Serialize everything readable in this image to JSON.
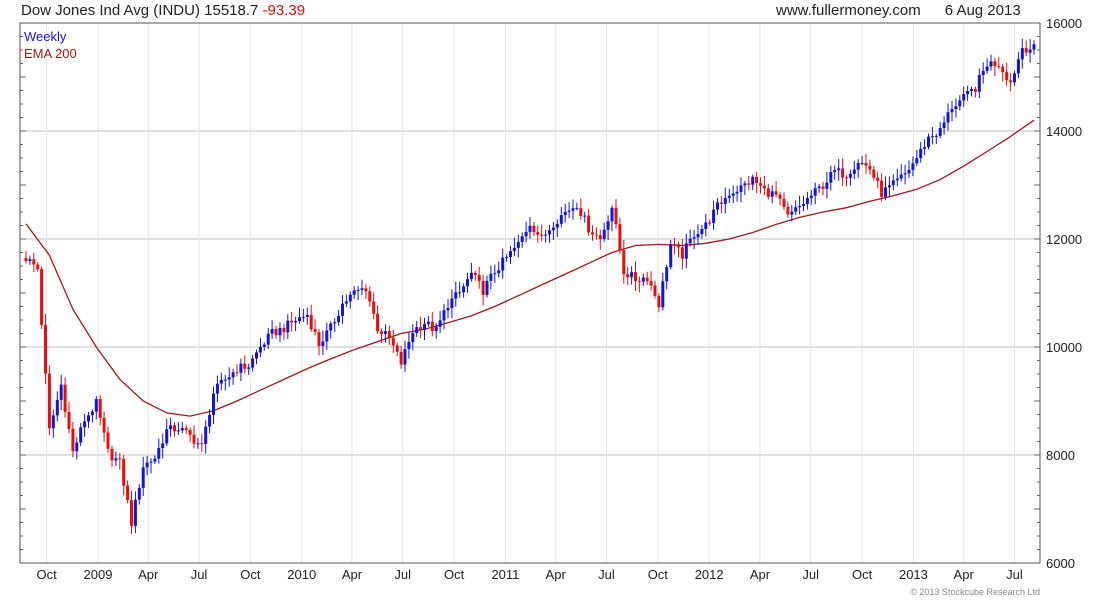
{
  "header": {
    "title": "Dow Jones Ind Avg (INDU)",
    "last": "15518.7",
    "change": "-93.39",
    "source": "www.fullermoney.com",
    "date": "6 Aug 2013"
  },
  "copyright": "© 2013 Stockcube Research Ltd",
  "colors": {
    "up": "#1515d0",
    "down": "#e01010",
    "ema": "#a01818",
    "grid": "#c8c8c8",
    "frame": "#555555"
  },
  "chart_data": {
    "type": "line",
    "title": "Dow Jones Ind Avg (INDU)",
    "frequency": "Weekly",
    "ylim": [
      6000,
      16000
    ],
    "y_ticks": [
      6000,
      8000,
      10000,
      12000,
      14000,
      16000
    ],
    "x_ticks": [
      "Oct",
      "2009",
      "Apr",
      "Jul",
      "Oct",
      "2010",
      "Apr",
      "Jul",
      "Oct",
      "2011",
      "Apr",
      "Jul",
      "Oct",
      "2012",
      "Apr",
      "Jul",
      "Oct",
      "2013",
      "Apr",
      "Jul"
    ],
    "x_tick_dates": [
      "2008-10-01",
      "2009-01-01",
      "2009-04-01",
      "2009-07-01",
      "2009-10-01",
      "2010-01-01",
      "2010-04-01",
      "2010-07-01",
      "2010-10-01",
      "2011-01-01",
      "2011-04-01",
      "2011-07-01",
      "2011-10-01",
      "2012-01-01",
      "2012-04-01",
      "2012-07-01",
      "2012-10-01",
      "2013-01-01",
      "2013-04-01",
      "2013-07-01"
    ],
    "x_range": [
      "2008-08-25",
      "2013-08-05"
    ],
    "legend": [
      "Weekly",
      "EMA 200"
    ],
    "legend_placement": "top-left",
    "grid": true,
    "series": [
      {
        "name": "Weekly",
        "x": [
          "2008-08-25",
          "2008-09-15",
          "2008-10-06",
          "2008-10-27",
          "2008-11-17",
          "2008-12-08",
          "2008-12-29",
          "2009-01-19",
          "2009-02-09",
          "2009-03-02",
          "2009-03-23",
          "2009-04-13",
          "2009-05-04",
          "2009-05-25",
          "2009-06-15",
          "2009-07-06",
          "2009-07-27",
          "2009-08-17",
          "2009-09-07",
          "2009-09-28",
          "2009-10-19",
          "2009-11-09",
          "2009-11-30",
          "2009-12-21",
          "2010-01-11",
          "2010-02-01",
          "2010-02-22",
          "2010-03-15",
          "2010-04-05",
          "2010-04-26",
          "2010-05-17",
          "2010-06-07",
          "2010-06-28",
          "2010-07-19",
          "2010-08-09",
          "2010-08-30",
          "2010-09-20",
          "2010-10-11",
          "2010-11-01",
          "2010-11-22",
          "2010-12-13",
          "2011-01-03",
          "2011-01-24",
          "2011-02-14",
          "2011-03-07",
          "2011-03-28",
          "2011-04-18",
          "2011-05-09",
          "2011-05-30",
          "2011-06-20",
          "2011-07-11",
          "2011-08-01",
          "2011-08-22",
          "2011-09-12",
          "2011-10-03",
          "2011-10-24",
          "2011-11-14",
          "2011-12-05",
          "2011-12-26",
          "2012-01-16",
          "2012-02-06",
          "2012-02-27",
          "2012-03-19",
          "2012-04-09",
          "2012-04-30",
          "2012-05-21",
          "2012-06-11",
          "2012-07-02",
          "2012-07-23",
          "2012-08-13",
          "2012-09-03",
          "2012-09-24",
          "2012-10-15",
          "2012-11-05",
          "2012-11-26",
          "2012-12-17",
          "2013-01-07",
          "2013-01-28",
          "2013-02-18",
          "2013-03-11",
          "2013-04-01",
          "2013-04-22",
          "2013-05-13",
          "2013-06-03",
          "2013-06-24",
          "2013-07-15",
          "2013-08-05"
        ],
        "close": [
          11650,
          11450,
          8450,
          9300,
          8050,
          8650,
          8950,
          8050,
          7850,
          6750,
          7800,
          7950,
          8450,
          8500,
          8350,
          8150,
          9150,
          9400,
          9600,
          9650,
          10000,
          10250,
          10350,
          10500,
          10600,
          10050,
          10350,
          10800,
          11000,
          11100,
          10350,
          10150,
          9700,
          10300,
          10450,
          10300,
          10800,
          11000,
          11350,
          11050,
          11400,
          11650,
          11900,
          12300,
          12000,
          12300,
          12500,
          12650,
          12200,
          12000,
          12600,
          11400,
          11250,
          11300,
          10800,
          11900,
          11700,
          12100,
          12250,
          12600,
          12850,
          12950,
          13100,
          12900,
          12800,
          12400,
          12600,
          12800,
          13000,
          13250,
          13200,
          13450,
          13300,
          12850,
          13000,
          13200,
          13500,
          13880,
          14000,
          14450,
          14600,
          14800,
          15250,
          15250,
          14900,
          15550,
          15520
        ]
      },
      {
        "name": "EMA 200",
        "x": [
          "2008-08-25",
          "2008-10-06",
          "2008-11-17",
          "2008-12-29",
          "2009-02-09",
          "2009-03-23",
          "2009-05-04",
          "2009-06-15",
          "2009-07-27",
          "2009-09-07",
          "2009-10-19",
          "2009-11-30",
          "2010-01-11",
          "2010-02-22",
          "2010-04-05",
          "2010-05-17",
          "2010-06-28",
          "2010-08-09",
          "2010-09-20",
          "2010-11-01",
          "2010-12-13",
          "2011-01-24",
          "2011-03-07",
          "2011-04-18",
          "2011-05-30",
          "2011-07-11",
          "2011-08-22",
          "2011-10-03",
          "2011-11-14",
          "2011-12-26",
          "2012-02-06",
          "2012-03-19",
          "2012-04-30",
          "2012-06-11",
          "2012-07-23",
          "2012-09-03",
          "2012-10-15",
          "2012-11-26",
          "2013-01-07",
          "2013-02-18",
          "2013-04-01",
          "2013-05-13",
          "2013-06-24",
          "2013-08-05"
        ],
        "values": [
          12280,
          11700,
          10700,
          10000,
          9400,
          9000,
          8780,
          8720,
          8820,
          9000,
          9200,
          9400,
          9600,
          9780,
          9950,
          10100,
          10250,
          10330,
          10450,
          10580,
          10750,
          10950,
          11150,
          11350,
          11550,
          11750,
          11880,
          11900,
          11880,
          11920,
          12000,
          12120,
          12270,
          12400,
          12500,
          12580,
          12700,
          12800,
          12920,
          13100,
          13350,
          13620,
          13900,
          14200
        ]
      }
    ]
  }
}
